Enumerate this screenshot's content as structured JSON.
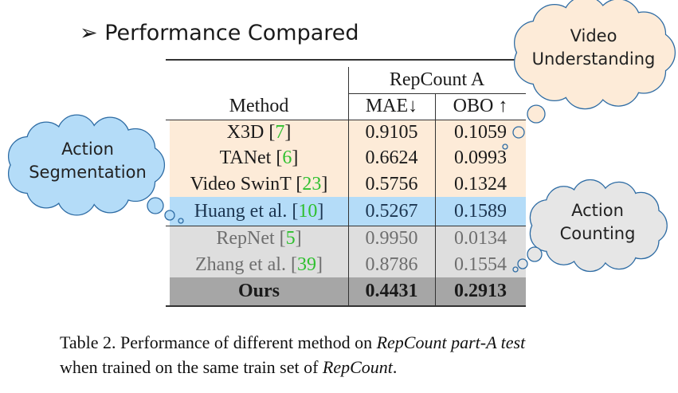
{
  "title": {
    "bullet": "➢",
    "text": "Performance Compared"
  },
  "table": {
    "group_header": "RepCount A",
    "columns": [
      "Method",
      "MAE↓",
      "OBO ↑"
    ],
    "rows": [
      {
        "method": "X3D",
        "ref": "7",
        "mae": "0.9105",
        "obo": "0.1059",
        "group": "video-understanding"
      },
      {
        "method": "TANet",
        "ref": "6",
        "mae": "0.6624",
        "obo": "0.0993",
        "group": "video-understanding"
      },
      {
        "method": "Video SwinT",
        "ref": "23",
        "mae": "0.5756",
        "obo": "0.1324",
        "group": "video-understanding"
      },
      {
        "method": "Huang et al.",
        "ref": "10",
        "mae": "0.5267",
        "obo": "0.1589",
        "group": "action-segmentation"
      },
      {
        "method": "RepNet",
        "ref": "5",
        "mae": "0.9950",
        "obo": "0.0134",
        "group": "action-counting"
      },
      {
        "method": "Zhang et al.",
        "ref": "39",
        "mae": "0.8786",
        "obo": "0.1554",
        "group": "action-counting"
      },
      {
        "method": "Ours",
        "ref": "",
        "mae": "0.4431",
        "obo": "0.2913",
        "group": "ours"
      }
    ]
  },
  "clouds": {
    "video_understanding": [
      "Video",
      "Understanding"
    ],
    "action_segmentation": [
      "Action",
      "Segmentation"
    ],
    "action_counting": [
      "Action",
      "Counting"
    ]
  },
  "caption": {
    "line1_prefix": "Table 2. Performance of different method on ",
    "line1_em": "RepCount part-A test",
    "line2_prefix": "when trained on the same train set of ",
    "line2_em": "RepCount",
    "line2_suffix": "."
  },
  "colors": {
    "video_understanding": "#fdebd8",
    "action_segmentation": "#b4dcf8",
    "action_counting": "#dedede",
    "ours": "#a6a6a6",
    "reference": "#2fc02f",
    "cloud_stroke": "#2e6ca4"
  }
}
